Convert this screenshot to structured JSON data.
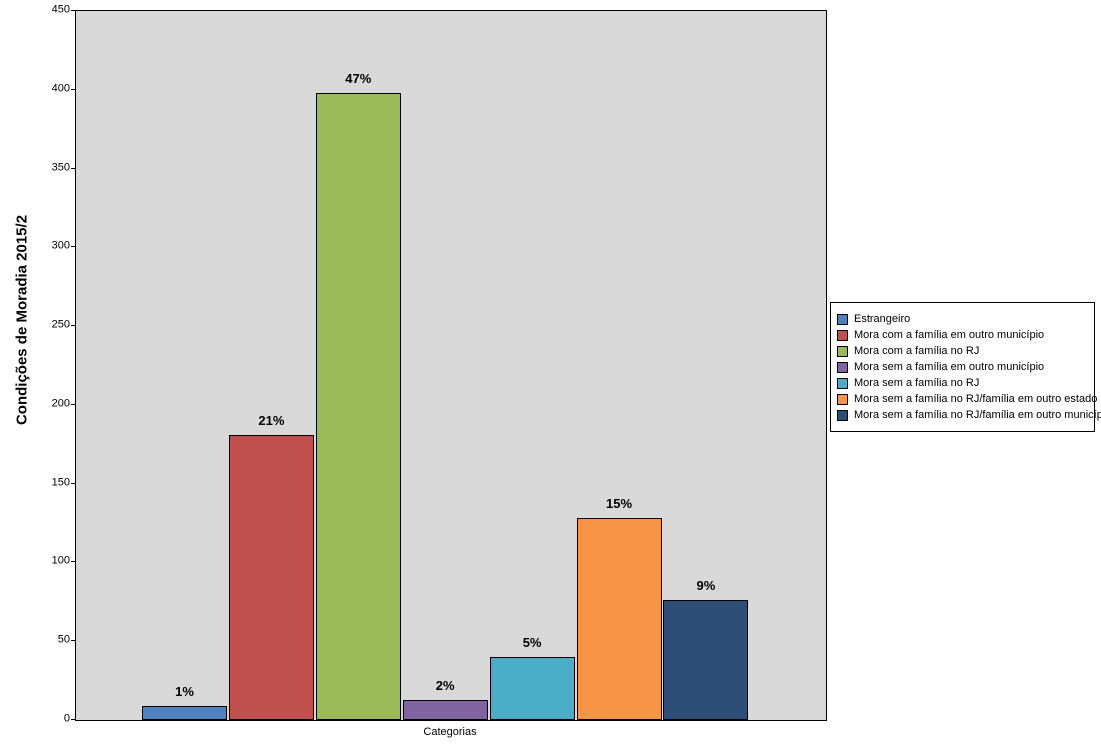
{
  "chart_data": {
    "type": "bar",
    "title": "",
    "ylabel": "Condições de Moradia 2015/2",
    "xlabel": "Categorias",
    "ylim": [
      0,
      450
    ],
    "ytick_step": 50,
    "grid": false,
    "legend_position": "right",
    "plot_background": "#D9D9D9",
    "categories": [
      "Estrangeiro",
      "Mora com a família em outro município",
      "Mora com a família no RJ",
      "Mora sem a família em outro município",
      "Mora sem a família no RJ",
      "Mora sem a família no RJ/família em outro estado",
      "Mora sem a família no RJ/família em outro município"
    ],
    "series": [
      {
        "name": "Estrangeiro",
        "color": "#4F81BD",
        "value": 9,
        "data_label": "1%"
      },
      {
        "name": "Mora com a família em outro município",
        "color": "#C0504D",
        "value": 181,
        "data_label": "21%"
      },
      {
        "name": "Mora com a família no RJ",
        "color": "#9BBB59",
        "value": 398,
        "data_label": "47%"
      },
      {
        "name": "Mora sem a família em outro município",
        "color": "#8064A2",
        "value": 13,
        "data_label": "2%"
      },
      {
        "name": "Mora sem a família no RJ",
        "color": "#4BACC6",
        "value": 40,
        "data_label": "5%"
      },
      {
        "name": "Mora sem a família no RJ/família em outro estado",
        "color": "#F79646",
        "value": 128,
        "data_label": "15%"
      },
      {
        "name": "Mora sem a família no RJ/família em outro município",
        "color": "#2C4D75",
        "value": 76,
        "data_label": "9%"
      }
    ]
  }
}
